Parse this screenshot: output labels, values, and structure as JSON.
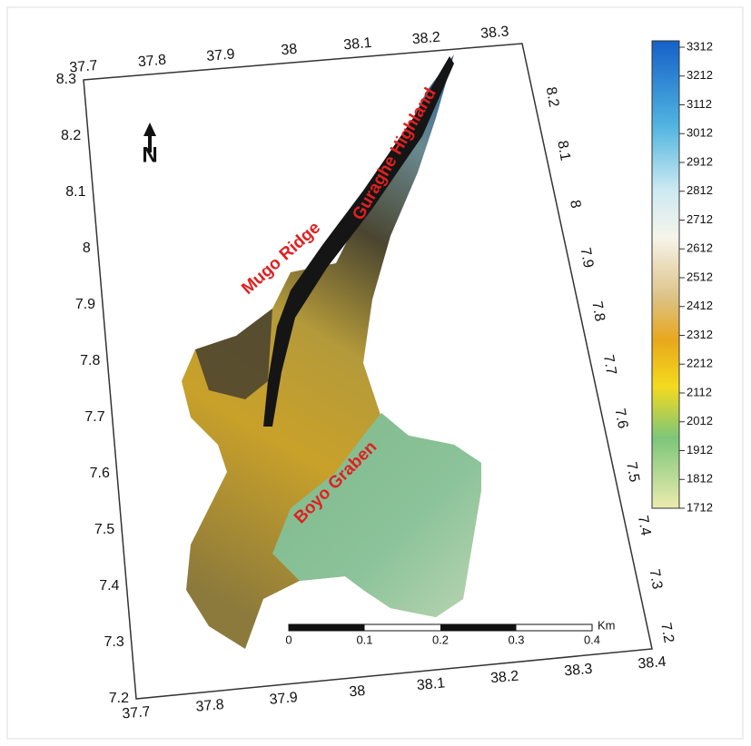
{
  "map": {
    "axes": {
      "top": [
        "37.7",
        "37.8",
        "37.9",
        "38",
        "38.1",
        "38.2",
        "38.3"
      ],
      "left": [
        "8.3",
        "8.2",
        "8.1",
        "8",
        "7.9",
        "7.8",
        "7.7",
        "7.6",
        "7.5",
        "7.4",
        "7.3",
        "7.2"
      ],
      "bottom": [
        "37.7",
        "37.8",
        "37.9",
        "38",
        "38.1",
        "38.2",
        "38.3",
        "38.4"
      ],
      "right": [
        "8.2",
        "8.1",
        "8",
        "7.9",
        "7.8",
        "7.7",
        "7.6",
        "7.5",
        "7.4",
        "7.3",
        "7.2"
      ]
    },
    "legend": {
      "labels": [
        "3312",
        "3212",
        "3112",
        "3012",
        "2912",
        "2812",
        "2712",
        "2612",
        "2512",
        "2412",
        "2312",
        "2212",
        "2112",
        "2012",
        "1912",
        "1812",
        "1712"
      ]
    },
    "scale_bar": {
      "labels": [
        "0",
        "0.1",
        "0.2",
        "0.3",
        "0.4"
      ],
      "unit": "Km"
    },
    "annotations": {
      "north": "N",
      "features": [
        "Mugo Ridge",
        "Guraghe Highland",
        "Boyo Graben"
      ]
    }
  }
}
